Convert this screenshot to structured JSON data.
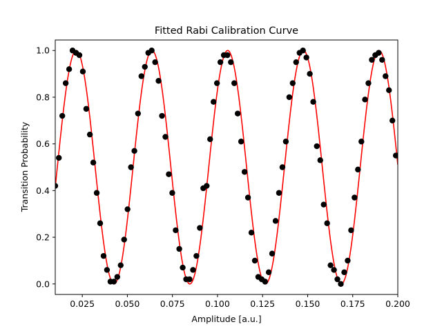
{
  "chart_data": {
    "type": "scatter",
    "title": "Fitted Rabi Calibration Curve",
    "xlabel": "Amplitude [a.u.]",
    "ylabel": "Transition Probability",
    "xlim": [
      0.01,
      0.2
    ],
    "ylim": [
      -0.045,
      1.045
    ],
    "grid": false,
    "legend": "none",
    "x_ticks": [
      {
        "value": 0.025,
        "label": "0.025"
      },
      {
        "value": 0.05,
        "label": "0.050"
      },
      {
        "value": 0.075,
        "label": "0.075"
      },
      {
        "value": 0.1,
        "label": "0.100"
      },
      {
        "value": 0.125,
        "label": "0.125"
      },
      {
        "value": 0.15,
        "label": "0.150"
      },
      {
        "value": 0.175,
        "label": "0.175"
      },
      {
        "value": 0.2,
        "label": "0.200"
      }
    ],
    "y_ticks": [
      {
        "value": 0.0,
        "label": "0.0"
      },
      {
        "value": 0.2,
        "label": "0.2"
      },
      {
        "value": 0.4,
        "label": "0.4"
      },
      {
        "value": 0.6,
        "label": "0.6"
      },
      {
        "value": 0.8,
        "label": "0.8"
      },
      {
        "value": 1.0,
        "label": "1.0"
      }
    ],
    "series": [
      {
        "kind": "scatter",
        "color": "#000000",
        "x": [
          0.01,
          0.012,
          0.0139,
          0.0158,
          0.0177,
          0.0196,
          0.0215,
          0.0234,
          0.0253,
          0.0272,
          0.0292,
          0.0311,
          0.033,
          0.0349,
          0.0368,
          0.0387,
          0.0406,
          0.0425,
          0.0444,
          0.0463,
          0.0482,
          0.0501,
          0.052,
          0.0539,
          0.0559,
          0.0578,
          0.0597,
          0.0616,
          0.0635,
          0.0654,
          0.0673,
          0.0692,
          0.0711,
          0.073,
          0.0749,
          0.0768,
          0.0788,
          0.0807,
          0.0826,
          0.0845,
          0.0864,
          0.0883,
          0.0902,
          0.0921,
          0.094,
          0.0959,
          0.0978,
          0.0997,
          0.1016,
          0.1035,
          0.1055,
          0.1074,
          0.1093,
          0.1112,
          0.1131,
          0.115,
          0.1169,
          0.1188,
          0.1207,
          0.1226,
          0.1245,
          0.1264,
          0.1284,
          0.1303,
          0.1322,
          0.1341,
          0.136,
          0.1379,
          0.1398,
          0.1417,
          0.1436,
          0.1455,
          0.1474,
          0.1493,
          0.1512,
          0.1531,
          0.1551,
          0.157,
          0.1589,
          0.1608,
          0.1627,
          0.1646,
          0.1665,
          0.1684,
          0.1703,
          0.1722,
          0.1741,
          0.176,
          0.1779,
          0.1798,
          0.1818,
          0.1837,
          0.1856,
          0.1875,
          0.1894,
          0.1913,
          0.1932,
          0.1951,
          0.197,
          0.1989,
          0.2
        ],
        "y": [
          0.42,
          0.54,
          0.72,
          0.86,
          0.92,
          1.0,
          0.99,
          0.98,
          0.91,
          0.75,
          0.64,
          0.52,
          0.39,
          0.26,
          0.12,
          0.06,
          0.01,
          0.01,
          0.03,
          0.08,
          0.19,
          0.32,
          0.5,
          0.57,
          0.73,
          0.89,
          0.93,
          0.99,
          1.0,
          0.95,
          0.87,
          0.72,
          0.63,
          0.47,
          0.39,
          0.23,
          0.15,
          0.07,
          0.02,
          0.02,
          0.06,
          0.12,
          0.24,
          0.41,
          0.42,
          0.62,
          0.78,
          0.86,
          0.95,
          0.98,
          0.98,
          0.95,
          0.86,
          0.73,
          0.61,
          0.48,
          0.37,
          0.22,
          0.1,
          0.03,
          0.02,
          0.01,
          0.05,
          0.13,
          0.27,
          0.39,
          0.5,
          0.61,
          0.8,
          0.86,
          0.95,
          0.99,
          1.0,
          0.97,
          0.9,
          0.78,
          0.59,
          0.53,
          0.34,
          0.26,
          0.08,
          0.06,
          0.02,
          0.0,
          0.05,
          0.1,
          0.23,
          0.37,
          0.49,
          0.61,
          0.79,
          0.86,
          0.96,
          0.98,
          0.99,
          0.96,
          0.89,
          0.83,
          0.7,
          0.55,
          0.55
        ]
      },
      {
        "kind": "line",
        "color": "#ff0000",
        "fit": {
          "model": "sin_squared",
          "phase_at_xmin": 0.7,
          "period": 0.042,
          "amplitude": 1.0
        }
      }
    ]
  }
}
